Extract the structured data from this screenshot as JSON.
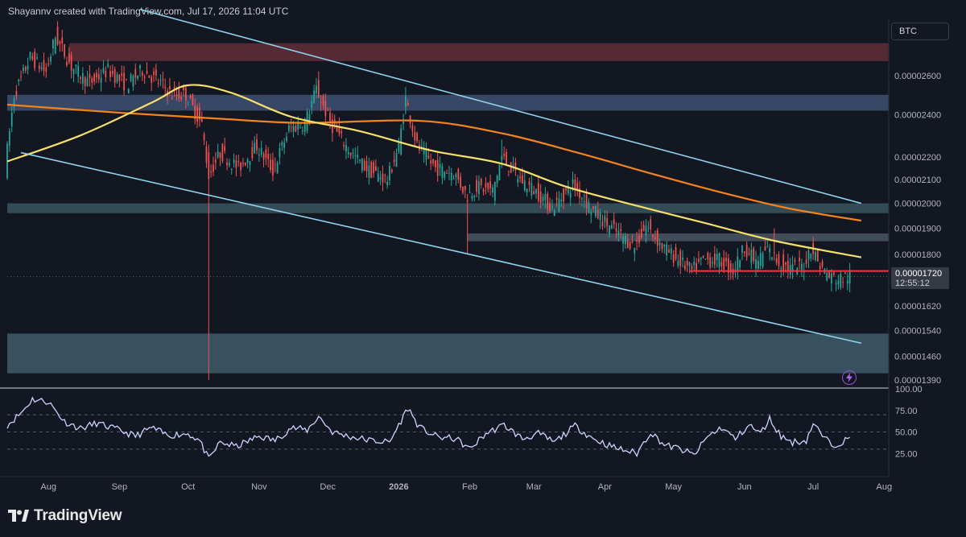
{
  "header": {
    "attribution": "Shayannv created with TradingView.com, Jul 17, 2026 11:04 UTC"
  },
  "symbol": "BTC",
  "current_price": {
    "value": "0.00001720",
    "countdown": "12:55:12"
  },
  "footer": {
    "brand": "TradingView"
  },
  "colors": {
    "background": "#131722",
    "candle_up": "#26a69a",
    "candle_down": "#ef5350",
    "ma_short": "#f4e06a",
    "ma_long": "#f2831f",
    "channel": "#8fd3ee",
    "supply_zone": "#5a2b36",
    "demand_zone": "#3f5c6a",
    "resistance_zone": "#3c4e6e",
    "support_line": "#f23645",
    "rsi_line": "#c9d7ff"
  },
  "icons": {
    "alert": "lightning-icon",
    "logo": "tradingview-logo-icon"
  },
  "chart_data": {
    "type": "candlestick",
    "price_axis": {
      "scale": "log",
      "range": [
        1.37e-05,
        2.93e-05
      ],
      "ticks": [
        "0.00002600",
        "0.00002400",
        "0.00002200",
        "0.00002100",
        "0.00002000",
        "0.00001900",
        "0.00001800",
        "0.00001620",
        "0.00001540",
        "0.00001460",
        "0.00001390"
      ]
    },
    "time_axis": {
      "range": [
        "2025-07-14",
        "2026-08-03"
      ],
      "ticks": [
        {
          "label": "Aug",
          "date": "2025-08-01"
        },
        {
          "label": "Sep",
          "date": "2025-09-01"
        },
        {
          "label": "Oct",
          "date": "2025-10-01"
        },
        {
          "label": "Nov",
          "date": "2025-11-01"
        },
        {
          "label": "Dec",
          "date": "2025-12-01"
        },
        {
          "label": "2026",
          "date": "2026-01-01"
        },
        {
          "label": "Feb",
          "date": "2026-02-01"
        },
        {
          "label": "Mar",
          "date": "2026-03-01"
        },
        {
          "label": "Apr",
          "date": "2026-04-01"
        },
        {
          "label": "May",
          "date": "2026-05-01"
        },
        {
          "label": "Jun",
          "date": "2026-06-01"
        },
        {
          "label": "Jul",
          "date": "2026-07-01"
        },
        {
          "label": "Aug",
          "date": "2026-08-01"
        }
      ]
    },
    "close_anchors": [
      [
        "2025-07-14",
        2.15e-05
      ],
      [
        "2025-07-18",
        2.5e-05
      ],
      [
        "2025-07-25",
        2.7e-05
      ],
      [
        "2025-08-01",
        2.62e-05
      ],
      [
        "2025-08-05",
        2.82e-05
      ],
      [
        "2025-08-12",
        2.65e-05
      ],
      [
        "2025-08-20",
        2.56e-05
      ],
      [
        "2025-08-28",
        2.63e-05
      ],
      [
        "2025-09-05",
        2.55e-05
      ],
      [
        "2025-09-12",
        2.63e-05
      ],
      [
        "2025-09-20",
        2.56e-05
      ],
      [
        "2025-09-25",
        2.5e-05
      ],
      [
        "2025-10-01",
        2.5e-05
      ],
      [
        "2025-10-08",
        2.35e-05
      ],
      [
        "2025-10-11",
        2.12e-05
      ],
      [
        "2025-10-16",
        2.22e-05
      ],
      [
        "2025-10-24",
        2.15e-05
      ],
      [
        "2025-11-01",
        2.25e-05
      ],
      [
        "2025-11-08",
        2.14e-05
      ],
      [
        "2025-11-15",
        2.33e-05
      ],
      [
        "2025-11-22",
        2.36e-05
      ],
      [
        "2025-11-27",
        2.53e-05
      ],
      [
        "2025-12-03",
        2.36e-05
      ],
      [
        "2025-12-12",
        2.22e-05
      ],
      [
        "2025-12-20",
        2.14e-05
      ],
      [
        "2025-12-28",
        2.1e-05
      ],
      [
        "2026-01-02",
        2.25e-05
      ],
      [
        "2026-01-05",
        2.48e-05
      ],
      [
        "2026-01-10",
        2.25e-05
      ],
      [
        "2026-01-18",
        2.15e-05
      ],
      [
        "2026-01-26",
        2.13e-05
      ],
      [
        "2026-02-01",
        2.03e-05
      ],
      [
        "2026-02-05",
        2.07e-05
      ],
      [
        "2026-02-12",
        2.05e-05
      ],
      [
        "2026-02-16",
        2.2e-05
      ],
      [
        "2026-02-24",
        2.1e-05
      ],
      [
        "2026-03-03",
        2.05e-05
      ],
      [
        "2026-03-10",
        1.98e-05
      ],
      [
        "2026-03-19",
        2.08e-05
      ],
      [
        "2026-03-27",
        1.98e-05
      ],
      [
        "2026-04-05",
        1.9e-05
      ],
      [
        "2026-04-15",
        1.83e-05
      ],
      [
        "2026-04-20",
        1.91e-05
      ],
      [
        "2026-04-27",
        1.83e-05
      ],
      [
        "2026-05-04",
        1.78e-05
      ],
      [
        "2026-05-10",
        1.74e-05
      ],
      [
        "2026-05-15",
        1.78e-05
      ],
      [
        "2026-05-22",
        1.78e-05
      ],
      [
        "2026-05-28",
        1.74e-05
      ],
      [
        "2026-06-02",
        1.83e-05
      ],
      [
        "2026-06-07",
        1.77e-05
      ],
      [
        "2026-06-12",
        1.82e-05
      ],
      [
        "2026-06-17",
        1.77e-05
      ],
      [
        "2026-06-22",
        1.75e-05
      ],
      [
        "2026-06-28",
        1.76e-05
      ],
      [
        "2026-07-01",
        1.83e-05
      ],
      [
        "2026-07-05",
        1.76e-05
      ],
      [
        "2026-07-09",
        1.72e-05
      ],
      [
        "2026-07-13",
        1.71e-05
      ],
      [
        "2026-07-17",
        1.72e-05
      ]
    ],
    "wick_spikes": [
      {
        "date": "2025-10-10",
        "low": 1.39e-05
      },
      {
        "date": "2026-01-04",
        "high": 2.54e-05
      },
      {
        "date": "2026-01-31",
        "low": 1.8e-05
      },
      {
        "date": "2026-02-15",
        "high": 2.28e-05
      },
      {
        "date": "2026-06-14",
        "high": 1.9e-05
      }
    ],
    "ma_short": {
      "name": "",
      "color": "#f4e06a",
      "points": [
        [
          "2025-07-14",
          2.18e-05
        ],
        [
          "2025-08-15",
          2.3e-05
        ],
        [
          "2025-09-15",
          2.46e-05
        ],
        [
          "2025-10-01",
          2.55e-05
        ],
        [
          "2025-10-20",
          2.51e-05
        ],
        [
          "2025-11-15",
          2.39e-05
        ],
        [
          "2025-12-15",
          2.32e-05
        ],
        [
          "2026-01-15",
          2.23e-05
        ],
        [
          "2026-02-15",
          2.17e-05
        ],
        [
          "2026-03-15",
          2.07e-05
        ],
        [
          "2026-04-15",
          1.99e-05
        ],
        [
          "2026-05-15",
          1.92e-05
        ],
        [
          "2026-06-15",
          1.85e-05
        ],
        [
          "2026-07-22",
          1.79e-05
        ]
      ]
    },
    "ma_long": {
      "name": "",
      "color": "#f2831f",
      "points": [
        [
          "2025-07-14",
          2.45e-05
        ],
        [
          "2025-09-01",
          2.41e-05
        ],
        [
          "2025-10-15",
          2.38e-05
        ],
        [
          "2025-11-20",
          2.36e-05
        ],
        [
          "2026-01-10",
          2.37e-05
        ],
        [
          "2026-02-15",
          2.31e-05
        ],
        [
          "2026-03-20",
          2.22e-05
        ],
        [
          "2026-04-20",
          2.13e-05
        ],
        [
          "2026-05-20",
          2.05e-05
        ],
        [
          "2026-06-20",
          1.98e-05
        ],
        [
          "2026-07-22",
          1.93e-05
        ]
      ]
    },
    "channel": [
      {
        "from": [
          "2025-09-10",
          2.98e-05
        ],
        "to": [
          "2026-07-22",
          2e-05
        ]
      },
      {
        "from": [
          "2025-07-20",
          2.22e-05
        ],
        "to": [
          "2026-07-22",
          1.5e-05
        ]
      }
    ],
    "zones": [
      {
        "name": "supply",
        "low": 2.68e-05,
        "high": 2.78e-05,
        "from": "2025-08-10",
        "to": "2026-08-03"
      },
      {
        "name": "resistance",
        "low": 2.42e-05,
        "high": 2.5e-05,
        "from": "2025-07-14",
        "to": "2026-08-03"
      },
      {
        "name": "mid-zone",
        "low": 1.96e-05,
        "high": 2e-05,
        "from": "2025-07-14",
        "to": "2026-08-03"
      },
      {
        "name": "range-top",
        "low": 1.85e-05,
        "high": 1.88e-05,
        "from": "2026-01-31",
        "to": "2026-08-03"
      },
      {
        "name": "demand",
        "low": 1.41e-05,
        "high": 1.53e-05,
        "from": "2025-07-14",
        "to": "2026-08-03"
      }
    ],
    "support_line": {
      "price": 1.74e-05,
      "from": "2026-05-08",
      "to": "2026-08-03"
    },
    "rsi": {
      "range": [
        0,
        100
      ],
      "ticks": [
        "100.00",
        "75.00",
        "50.00",
        "25.00"
      ],
      "levels": [
        70,
        50,
        30
      ],
      "anchors": [
        [
          "2025-07-14",
          58
        ],
        [
          "2025-07-20",
          72
        ],
        [
          "2025-07-25",
          88
        ],
        [
          "2025-08-01",
          85
        ],
        [
          "2025-08-08",
          62
        ],
        [
          "2025-08-15",
          54
        ],
        [
          "2025-08-22",
          60
        ],
        [
          "2025-09-01",
          52
        ],
        [
          "2025-09-08",
          45
        ],
        [
          "2025-09-15",
          55
        ],
        [
          "2025-09-22",
          46
        ],
        [
          "2025-10-01",
          48
        ],
        [
          "2025-10-06",
          40
        ],
        [
          "2025-10-10",
          18
        ],
        [
          "2025-10-15",
          38
        ],
        [
          "2025-10-22",
          33
        ],
        [
          "2025-11-01",
          45
        ],
        [
          "2025-11-08",
          40
        ],
        [
          "2025-11-15",
          55
        ],
        [
          "2025-11-22",
          52
        ],
        [
          "2025-11-27",
          68
        ],
        [
          "2025-12-03",
          50
        ],
        [
          "2025-12-10",
          45
        ],
        [
          "2025-12-20",
          40
        ],
        [
          "2025-12-28",
          38
        ],
        [
          "2026-01-05",
          78
        ],
        [
          "2026-01-10",
          55
        ],
        [
          "2026-01-18",
          44
        ],
        [
          "2026-01-26",
          42
        ],
        [
          "2026-02-01",
          30
        ],
        [
          "2026-02-08",
          48
        ],
        [
          "2026-02-16",
          58
        ],
        [
          "2026-02-24",
          42
        ],
        [
          "2026-03-03",
          48
        ],
        [
          "2026-03-10",
          38
        ],
        [
          "2026-03-19",
          57
        ],
        [
          "2026-03-27",
          42
        ],
        [
          "2026-04-05",
          32
        ],
        [
          "2026-04-15",
          25
        ],
        [
          "2026-04-21",
          50
        ],
        [
          "2026-04-27",
          35
        ],
        [
          "2026-05-04",
          30
        ],
        [
          "2026-05-10",
          23
        ],
        [
          "2026-05-16",
          45
        ],
        [
          "2026-05-22",
          55
        ],
        [
          "2026-05-28",
          42
        ],
        [
          "2026-06-03",
          58
        ],
        [
          "2026-06-08",
          48
        ],
        [
          "2026-06-12",
          65
        ],
        [
          "2026-06-17",
          45
        ],
        [
          "2026-06-22",
          38
        ],
        [
          "2026-06-28",
          40
        ],
        [
          "2026-07-01",
          60
        ],
        [
          "2026-07-06",
          42
        ],
        [
          "2026-07-10",
          35
        ],
        [
          "2026-07-17",
          42
        ]
      ]
    }
  }
}
